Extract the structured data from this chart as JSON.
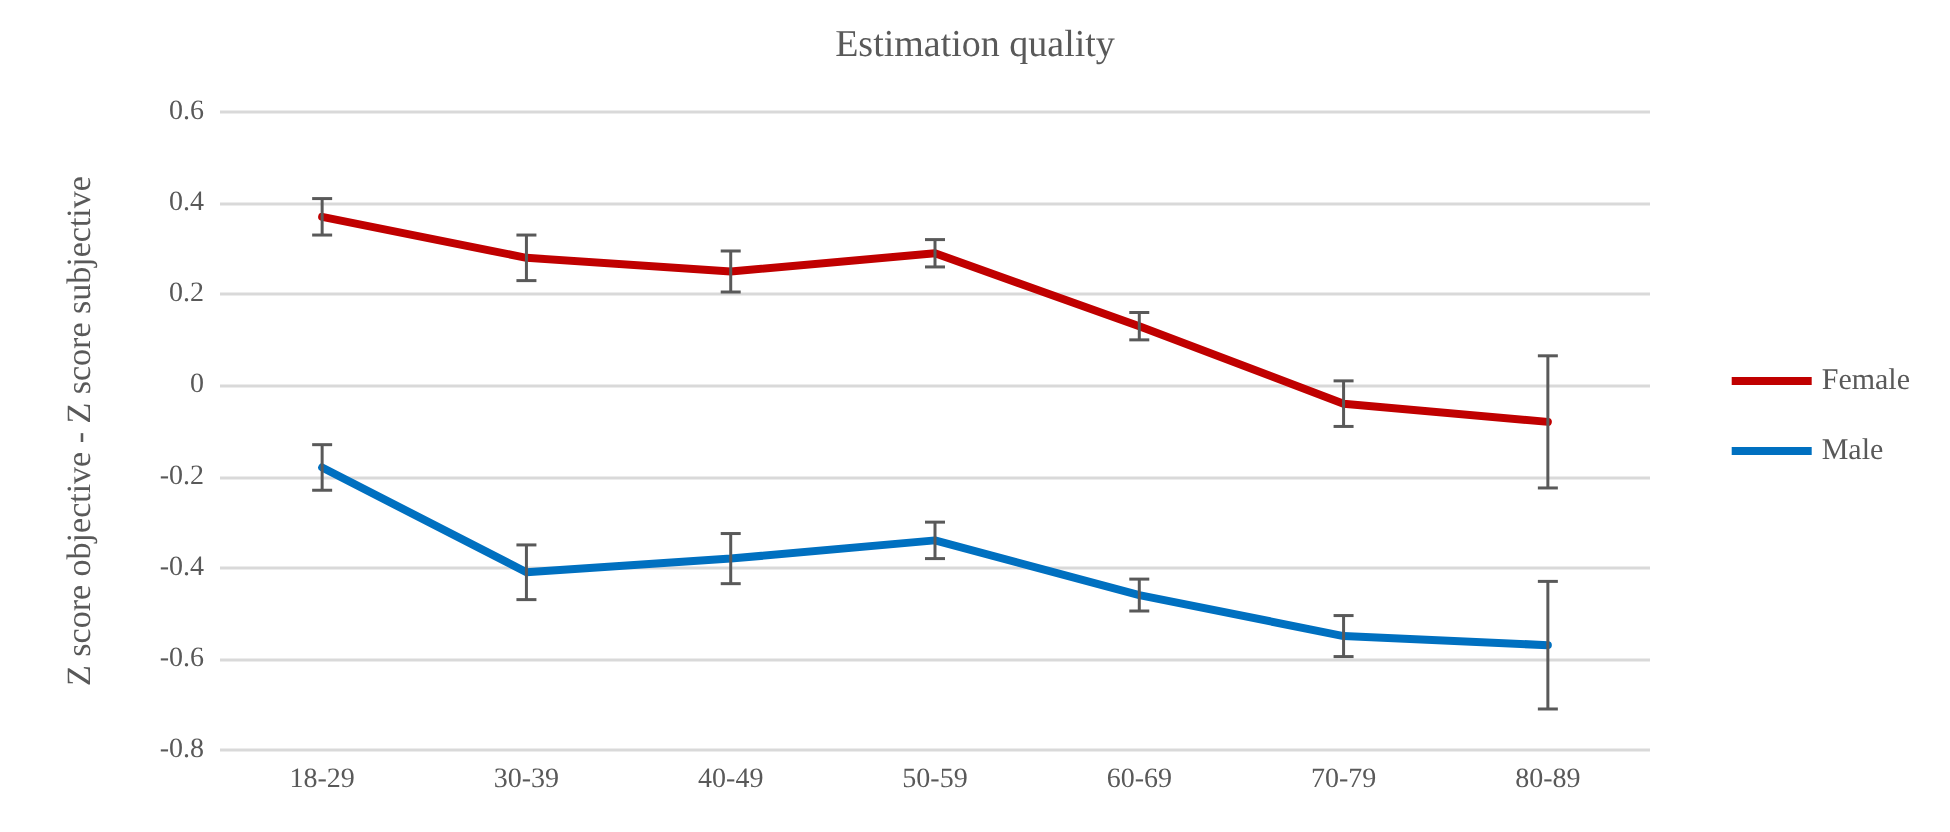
{
  "chart_data": {
    "type": "line",
    "title": "Estimation quality",
    "ylabel": "Z score objective - Z score subjective",
    "categories": [
      "18-29",
      "30-39",
      "40-49",
      "50-59",
      "60-69",
      "70-79",
      "80-89"
    ],
    "series": [
      {
        "name": "Female",
        "color": "#c00000",
        "values": [
          0.37,
          0.28,
          0.25,
          0.29,
          0.13,
          -0.04,
          -0.08
        ],
        "errors": [
          0.04,
          0.05,
          0.045,
          0.03,
          0.03,
          0.05,
          0.145
        ]
      },
      {
        "name": "Male",
        "color": "#0070c0",
        "values": [
          -0.18,
          -0.41,
          -0.38,
          -0.34,
          -0.46,
          -0.55,
          -0.57
        ],
        "errors": [
          0.05,
          0.06,
          0.055,
          0.04,
          0.035,
          0.045,
          0.14
        ]
      }
    ],
    "ylim": [
      -0.8,
      0.6
    ],
    "yticks": [
      -0.8,
      -0.6,
      -0.4,
      -0.2,
      0,
      0.2,
      0.4,
      0.6
    ],
    "grid": "y",
    "legend": "right",
    "marker": "none",
    "line_style": "solid"
  }
}
